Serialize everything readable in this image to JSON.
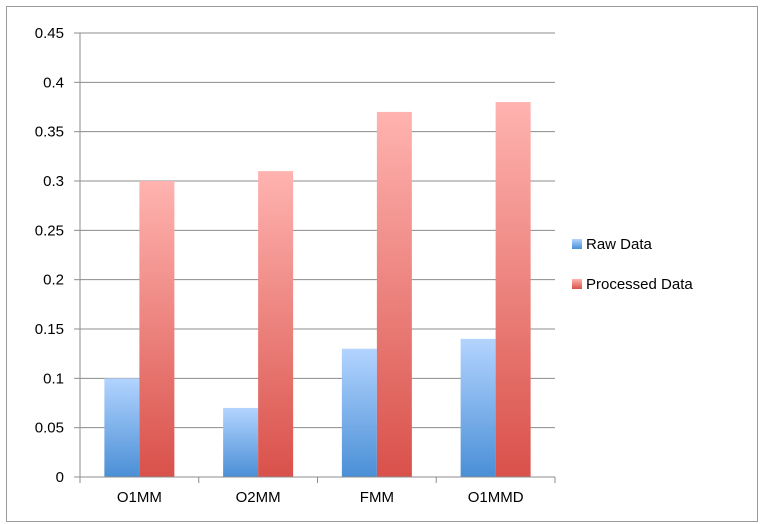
{
  "chart_data": {
    "type": "bar",
    "categories": [
      "O1MM",
      "O2MM",
      "FMM",
      "O1MMD"
    ],
    "series": [
      {
        "name": "Raw Data",
        "values": [
          0.1,
          0.07,
          0.13,
          0.14
        ],
        "color_top": "#b3d4ff",
        "color_bottom": "#4a8fd6"
      },
      {
        "name": "Processed Data",
        "values": [
          0.3,
          0.31,
          0.37,
          0.38
        ],
        "color_top": "#ffb3b0",
        "color_bottom": "#d9514a"
      }
    ],
    "yticks": [
      "0",
      "0.05",
      "0.1",
      "0.15",
      "0.2",
      "0.25",
      "0.3",
      "0.35",
      "0.4",
      "0.45"
    ],
    "ylim": [
      0,
      0.45
    ],
    "grid": true,
    "legend_position": "right",
    "title": "",
    "xlabel": "",
    "ylabel": ""
  }
}
